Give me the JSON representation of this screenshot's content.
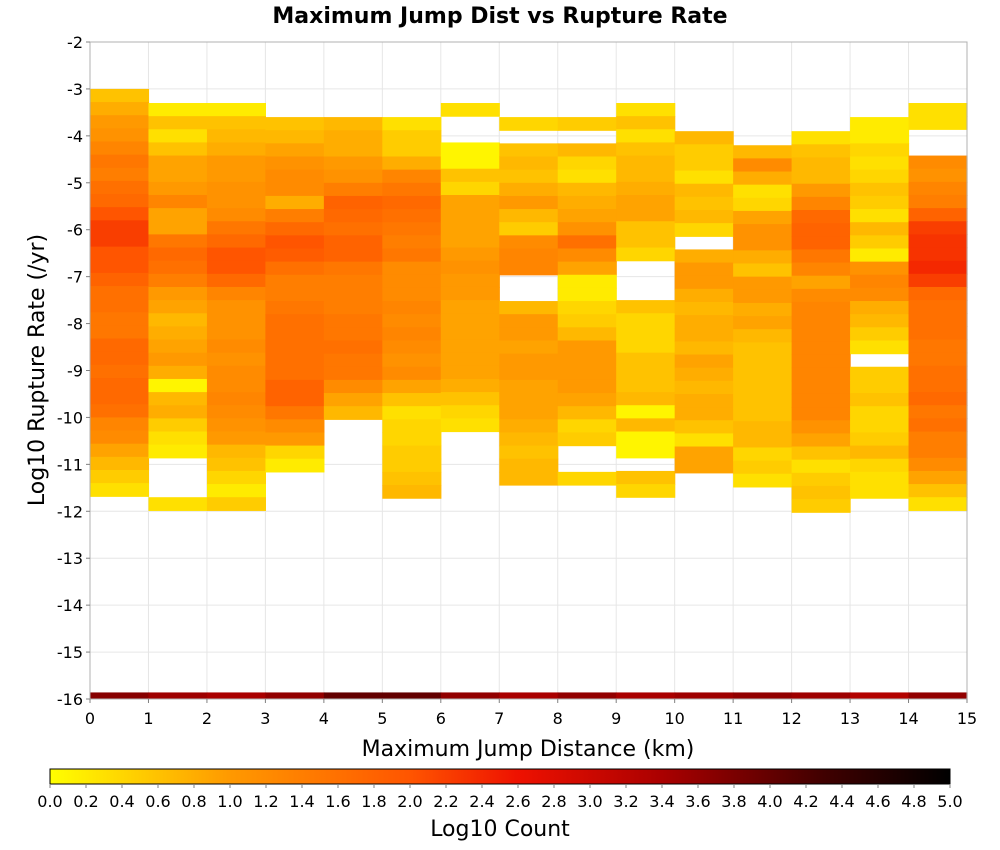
{
  "chart_data": {
    "type": "heatmap",
    "title": "Maximum Jump Dist vs Rupture Rate",
    "xlabel": "Maximum Jump Distance (km)",
    "ylabel": "Log10 Rupture Rate (/yr)",
    "xlim": [
      0,
      15
    ],
    "ylim": [
      -16,
      -2
    ],
    "x_ticks": [
      "0",
      "1",
      "2",
      "3",
      "4",
      "5",
      "6",
      "7",
      "8",
      "9",
      "10",
      "11",
      "12",
      "13",
      "14",
      "15"
    ],
    "y_ticks": [
      "-2",
      "-3",
      "-4",
      "-5",
      "-6",
      "-7",
      "-8",
      "-9",
      "-10",
      "-11",
      "-12",
      "-13",
      "-14",
      "-15",
      "-16"
    ],
    "x_bin_width": 1,
    "y_bin_height": 0.28,
    "grid": true,
    "colorbar": {
      "label": "Log10 Count",
      "min": 0,
      "max": 5,
      "ticks": [
        "0.0",
        "0.2",
        "0.4",
        "0.6",
        "0.8",
        "1.0",
        "1.2",
        "1.4",
        "1.6",
        "1.8",
        "2.0",
        "2.2",
        "2.4",
        "2.6",
        "2.8",
        "3.0",
        "3.2",
        "3.4",
        "3.6",
        "3.8",
        "4.0",
        "4.2",
        "4.4",
        "4.6",
        "4.8",
        "5.0"
      ],
      "colors": [
        "#ffff00",
        "#ff9900",
        "#ff5500",
        "#ee1100",
        "#aa0000",
        "#400000",
        "#000000"
      ]
    },
    "columns": [
      {
        "x_start": 0,
        "y_top": -3.0,
        "values": [
          0.6,
          0.8,
          1.0,
          1.1,
          1.3,
          1.5,
          1.4,
          1.6,
          1.7,
          2.0,
          2.2,
          2.2,
          2.0,
          2.0,
          1.8,
          1.6,
          1.6,
          1.5,
          1.5,
          1.7,
          1.7,
          1.6,
          1.7,
          1.7,
          1.6,
          1.3,
          1.2,
          0.9,
          0.7,
          0.5,
          0.3
        ]
      },
      {
        "x_start": 1,
        "y_top": -3.3,
        "values": [
          0.2,
          0.6,
          0.3,
          0.6,
          0.9,
          0.9,
          1.0,
          1.3,
          0.9,
          0.9,
          1.5,
          1.7,
          1.6,
          1.4,
          1.0,
          0.9,
          0.7,
          0.8,
          0.9,
          1.0,
          0.8,
          0.1,
          0.7,
          0.8,
          0.5,
          0.3,
          0.2,
          null,
          null,
          null,
          0.3
        ]
      },
      {
        "x_start": 2,
        "y_top": -3.3,
        "values": [
          0.2,
          0.6,
          0.7,
          0.8,
          1.0,
          1.0,
          1.1,
          1.1,
          1.2,
          1.5,
          1.7,
          2.0,
          2.0,
          1.7,
          1.3,
          1.1,
          1.1,
          1.1,
          1.2,
          1.1,
          1.2,
          1.2,
          1.3,
          1.2,
          1.1,
          1.0,
          0.7,
          0.6,
          0.4,
          0.2,
          0.5
        ]
      },
      {
        "x_start": 3,
        "y_top": -3.6,
        "values": [
          0.6,
          0.7,
          0.9,
          1.1,
          1.2,
          1.2,
          0.8,
          1.4,
          1.7,
          2.0,
          1.9,
          1.6,
          1.4,
          1.4,
          1.5,
          1.6,
          1.6,
          1.6,
          1.6,
          1.6,
          1.8,
          1.8,
          1.5,
          1.2,
          1.0,
          0.4,
          0.2
        ]
      },
      {
        "x_start": 4,
        "y_top": -3.6,
        "values": [
          0.7,
          0.8,
          0.8,
          1.0,
          1.1,
          1.4,
          1.8,
          1.7,
          1.6,
          1.8,
          1.8,
          1.5,
          1.4,
          1.4,
          1.4,
          1.5,
          1.5,
          1.6,
          1.5,
          1.5,
          1.2,
          0.9,
          0.7
        ]
      },
      {
        "x_start": 5,
        "y_top": -3.6,
        "values": [
          0.3,
          0.5,
          0.5,
          0.8,
          1.3,
          1.5,
          1.7,
          1.6,
          1.5,
          1.4,
          1.5,
          1.2,
          1.2,
          1.2,
          1.3,
          1.2,
          1.3,
          1.2,
          1.1,
          1.2,
          0.9,
          0.6,
          0.3,
          0.4,
          0.4,
          0.5,
          0.5,
          0.6,
          0.7
        ]
      },
      {
        "x_start": 6,
        "y_top": -3.3,
        "values": [
          0.3,
          null,
          null,
          0.1,
          0.1,
          0.6,
          0.4,
          0.9,
          0.9,
          0.9,
          0.9,
          1.0,
          1.1,
          1.0,
          1.0,
          0.9,
          0.9,
          0.9,
          0.9,
          0.9,
          0.9,
          0.8,
          0.6,
          0.4,
          0.3
        ]
      },
      {
        "x_start": 7,
        "y_top": -3.6,
        "values": [
          0.4,
          null,
          0.6,
          0.7,
          0.6,
          0.8,
          1.0,
          0.7,
          0.5,
          1.2,
          1.3,
          1.3,
          null,
          null,
          0.7,
          1.0,
          1.0,
          0.9,
          1.0,
          1.0,
          0.9,
          0.9,
          0.9,
          0.8,
          0.7,
          0.6,
          0.7,
          0.7
        ]
      },
      {
        "x_start": 8,
        "y_top": -3.6,
        "values": [
          0.5,
          null,
          0.7,
          0.4,
          0.3,
          0.7,
          0.8,
          0.9,
          1.1,
          1.6,
          1.2,
          0.9,
          0.2,
          0.2,
          0.4,
          0.5,
          0.7,
          1.0,
          1.0,
          1.0,
          1.0,
          0.9,
          0.7,
          0.4,
          0.5,
          null,
          null,
          0.4
        ]
      },
      {
        "x_start": 9,
        "y_top": -3.3,
        "values": [
          0.3,
          0.6,
          0.3,
          0.6,
          0.7,
          0.7,
          0.8,
          0.9,
          0.9,
          0.6,
          0.6,
          0.4,
          null,
          null,
          null,
          0.6,
          0.4,
          0.4,
          0.4,
          0.6,
          0.6,
          0.6,
          0.7,
          0.1,
          0.7,
          0.1,
          0.1,
          null,
          0.6,
          0.4
        ]
      },
      {
        "x_start": 10,
        "y_top": -3.9,
        "values": [
          0.7,
          0.5,
          0.5,
          0.3,
          0.7,
          0.6,
          0.7,
          0.4,
          null,
          0.8,
          1.0,
          1.0,
          0.8,
          0.7,
          0.8,
          0.8,
          0.7,
          0.9,
          0.8,
          0.7,
          0.8,
          0.8,
          0.6,
          0.3,
          0.9,
          0.9
        ]
      },
      {
        "x_start": 11,
        "y_top": -4.2,
        "values": [
          0.7,
          1.2,
          0.8,
          0.3,
          0.4,
          0.9,
          1.1,
          1.1,
          0.8,
          0.6,
          1.0,
          1.0,
          0.8,
          0.9,
          0.7,
          0.6,
          0.6,
          0.6,
          0.6,
          0.6,
          0.6,
          0.7,
          0.7,
          0.4,
          0.5,
          0.3
        ]
      },
      {
        "x_start": 12,
        "y_top": -3.9,
        "values": [
          0.3,
          0.6,
          0.7,
          0.7,
          1.0,
          1.3,
          1.7,
          1.8,
          1.8,
          1.5,
          1.3,
          0.9,
          1.2,
          1.3,
          1.3,
          1.3,
          1.3,
          1.3,
          1.3,
          1.3,
          1.3,
          1.3,
          1.1,
          0.9,
          0.6,
          0.3,
          0.5,
          0.6,
          0.5
        ]
      },
      {
        "x_start": 13,
        "y_top": -3.6,
        "values": [
          0.2,
          0.2,
          0.4,
          0.3,
          0.4,
          0.6,
          0.5,
          0.3,
          0.7,
          0.5,
          0.2,
          1.1,
          1.3,
          1.2,
          0.8,
          0.7,
          0.5,
          0.3,
          null,
          0.5,
          0.5,
          0.6,
          0.4,
          0.4,
          0.5,
          0.7,
          0.4,
          0.3,
          0.3
        ]
      },
      {
        "x_start": 14,
        "y_top": -3.3,
        "values": [
          0.3,
          0.3,
          null,
          null,
          1.2,
          1.1,
          1.3,
          1.4,
          1.8,
          2.2,
          2.3,
          2.3,
          2.4,
          2.2,
          1.7,
          1.6,
          1.6,
          1.6,
          1.5,
          1.5,
          1.6,
          1.6,
          1.7,
          1.5,
          1.6,
          1.4,
          1.4,
          1.2,
          0.9,
          0.6,
          0.3
        ]
      }
    ],
    "bottom_row": {
      "y_bottom": -16,
      "values": [
        3.7,
        3.5,
        3.4,
        3.6,
        4.0,
        4.0,
        3.6,
        3.4,
        3.6,
        3.4,
        3.5,
        3.6,
        3.5,
        3.3,
        3.6
      ]
    }
  }
}
